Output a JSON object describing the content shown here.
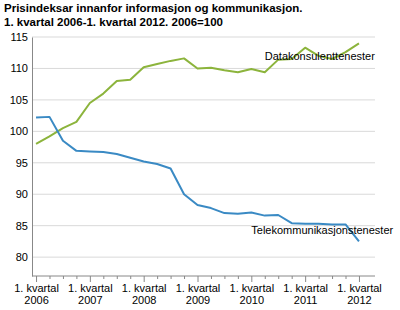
{
  "chart_data": {
    "type": "line",
    "title": "Prisindeksar innanfor informasjon og kommunikasjon.",
    "subtitle": "1. kvartal 2006-1. kvartal 2012. 2006=100",
    "categories": [
      "1. kvartal 2006",
      null,
      null,
      null,
      "1. kvartal 2007",
      null,
      null,
      null,
      "1. kvartal 2008",
      null,
      null,
      null,
      "1. kvartal 2009",
      null,
      null,
      null,
      "1. kvartal 2010",
      null,
      null,
      null,
      "1. kvartal 2011",
      null,
      null,
      null,
      "1. kvartal 2012"
    ],
    "series": [
      {
        "name": "Datakonsulenttenester",
        "color": "#8cb43c",
        "values": [
          98,
          99.2,
          100.5,
          101.5,
          104.5,
          106,
          108,
          108.2,
          110.2,
          110.7,
          111.2,
          111.6,
          110,
          110.1,
          109.7,
          109.4,
          109.9,
          109.4,
          111.4,
          111.5,
          113.3,
          112,
          111.5,
          112.6,
          114
        ]
      },
      {
        "name": "Telekommunikasjonstenester",
        "color": "#3a8ac4",
        "values": [
          102.2,
          102.3,
          98.5,
          96.9,
          96.8,
          96.7,
          96.4,
          95.8,
          95.2,
          94.8,
          94.1,
          90,
          88.3,
          87.8,
          87,
          86.9,
          87.1,
          86.6,
          86.7,
          85.4,
          85.3,
          85.3,
          85.2,
          85.2,
          82.5
        ]
      }
    ],
    "ylim": [
      77,
      115
    ],
    "yticks": [
      80,
      85,
      90,
      95,
      100,
      105,
      110,
      115
    ],
    "grid": true
  }
}
